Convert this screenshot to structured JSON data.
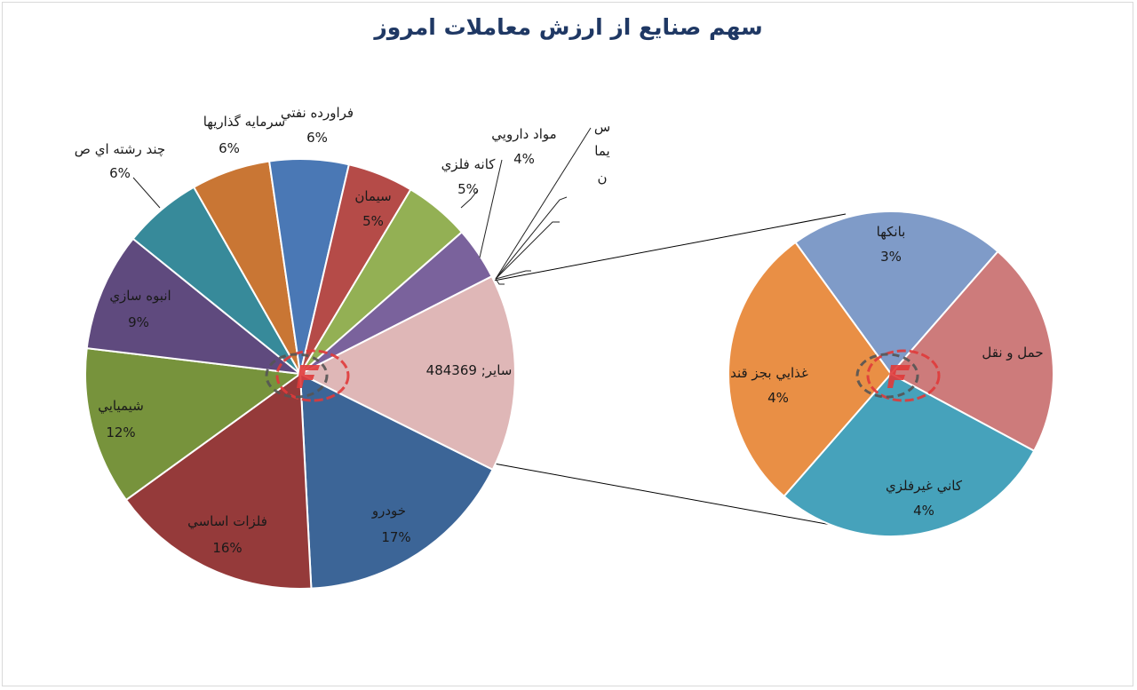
{
  "chart_data": {
    "type": "pie",
    "title": "سهم صنايع از ارزش معاملات امروز",
    "main_pie": {
      "slices": [
        {
          "label": "ساير",
          "value_label": "ساير; 484369",
          "value": 15,
          "color": "#dfb7b7"
        },
        {
          "label": "خودرو",
          "value_label": "17%",
          "value": 17,
          "color": "#3c6597"
        },
        {
          "label": "فلزات اساسي",
          "value_label": "16%",
          "value": 16,
          "color": "#953a3a"
        },
        {
          "label": "شيميايي",
          "value_label": "12%",
          "value": 12,
          "color": "#77933c"
        },
        {
          "label": "انبوه سازي",
          "value_label": "9%",
          "value": 9,
          "color": "#5f4a7e"
        },
        {
          "label": "چند رشته اي ص",
          "value_label": "6%",
          "value": 6,
          "color": "#378a9a"
        },
        {
          "label": "سرمايه گذاريها",
          "value_label": "6%",
          "value": 6,
          "color": "#c97634"
        },
        {
          "label": "فراورده نفتي",
          "value_label": "6%",
          "value": 6,
          "color": "#4a78b5"
        },
        {
          "label": "سيمان",
          "value_label": "5%",
          "value": 5,
          "color": "#b54b48"
        },
        {
          "label": "كانه فلزي",
          "value_label": "5%",
          "value": 5,
          "color": "#93b054"
        },
        {
          "label": "مواد دارويي",
          "value_label": "4%",
          "value": 4,
          "color": "#7a629c"
        }
      ],
      "clipped_label": [
        "س",
        "يما",
        "ن"
      ]
    },
    "secondary_pie": {
      "slices": [
        {
          "label": "بانكها",
          "value_label": "3%",
          "value": 3,
          "color": "#7f9bc8"
        },
        {
          "label": "حمل و نقل",
          "value_label": "",
          "value": 3,
          "color": "#cd7b7b"
        },
        {
          "label": "كاني غيرفلزي",
          "value_label": "4%",
          "value": 4,
          "color": "#46a2bb"
        },
        {
          "label": "غذايي بجز قند",
          "value_label": "4%",
          "value": 4,
          "color": "#e98f45"
        }
      ]
    }
  }
}
